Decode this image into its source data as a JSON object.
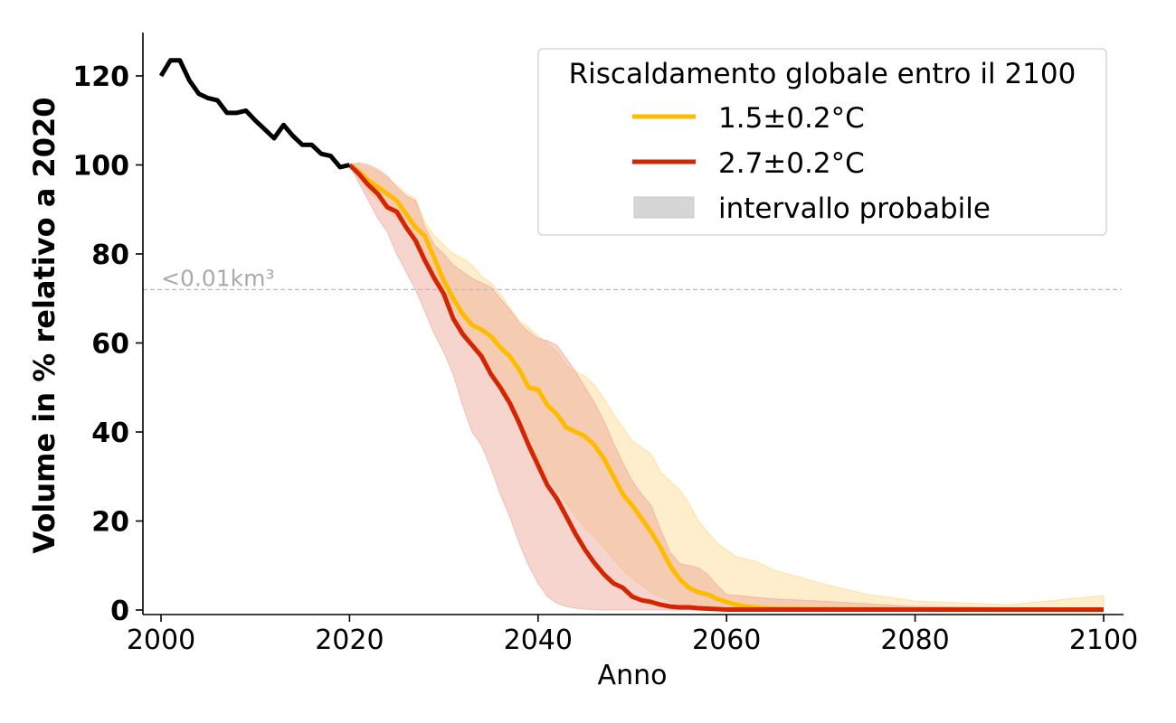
{
  "chart_data": {
    "type": "line",
    "title": "",
    "xlabel": "Anno",
    "ylabel": "Volume in % relativo a 2020",
    "xlim": [
      1998,
      2102
    ],
    "ylim": [
      -1,
      130
    ],
    "xticks": [
      2000,
      2020,
      2040,
      2060,
      2080,
      2100
    ],
    "yticks": [
      0,
      20,
      40,
      60,
      80,
      100,
      120
    ],
    "grid": false,
    "legend": {
      "title": "Riscaldamento globale entro il 2100",
      "placement": "top-right",
      "entries": [
        {
          "label": "1.5±0.2°C",
          "kind": "line",
          "color": "#ffbb00"
        },
        {
          "label": "2.7±0.2°C",
          "kind": "line",
          "color": "#d42400"
        },
        {
          "label": "intervallo probabile",
          "kind": "patch",
          "color": "#d6d6d6"
        }
      ]
    },
    "annotations": [
      {
        "text": "<0.01km³",
        "y": 72,
        "style": "dashed-horizontal-line",
        "color": "#aaaaaa"
      }
    ],
    "series": [
      {
        "name": "observed",
        "color": "#000000",
        "x": [
          2000,
          2001,
          2002,
          2003,
          2004,
          2005,
          2006,
          2007,
          2008,
          2009,
          2010,
          2011,
          2012,
          2013,
          2014,
          2015,
          2016,
          2017,
          2018,
          2019,
          2020
        ],
        "y": [
          120,
          123.5,
          123.5,
          119,
          116,
          115,
          114.5,
          111.7,
          111.7,
          112.2,
          110,
          108,
          106,
          109,
          106.5,
          104.5,
          104.5,
          102.5,
          102,
          99.5,
          100
        ]
      },
      {
        "name": "1.5±0.2°C",
        "color": "#ffbb00",
        "band_color": "#fdd37a",
        "x": [
          2020,
          2021,
          2022,
          2023,
          2024,
          2025,
          2026,
          2027,
          2028,
          2029,
          2030,
          2031,
          2032,
          2033,
          2034,
          2035,
          2036,
          2037,
          2038,
          2039,
          2040,
          2041,
          2042,
          2043,
          2044,
          2045,
          2046,
          2047,
          2048,
          2049,
          2050,
          2051,
          2052,
          2053,
          2054,
          2055,
          2056,
          2057,
          2058,
          2059,
          2060,
          2061,
          2062,
          2063,
          2064,
          2065,
          2070,
          2075,
          2080,
          2090,
          2100
        ],
        "y": [
          100,
          98.5,
          96.5,
          95,
          93.5,
          92,
          89,
          86,
          84,
          79,
          74,
          70,
          66.5,
          64,
          63,
          61.5,
          59,
          57,
          54,
          50,
          49.5,
          46,
          44,
          41,
          40,
          39,
          37,
          34,
          30,
          26,
          23.5,
          20.5,
          17.5,
          14,
          10,
          7,
          5,
          4,
          3.5,
          2.5,
          1.8,
          1.2,
          0.8,
          0.6,
          0.4,
          0.3,
          0.2,
          0.15,
          0.1,
          0.05,
          0.05
        ],
        "lower": [
          100,
          97,
          94,
          92,
          90,
          88,
          86,
          84,
          80,
          76,
          72,
          68,
          63,
          59,
          56,
          53,
          50,
          46,
          42,
          38,
          34,
          30,
          27,
          24,
          21,
          18.5,
          16.5,
          14,
          11.5,
          9,
          7,
          5.5,
          4,
          3,
          2,
          1.5,
          1,
          0.6,
          0.4,
          0.3,
          0.2,
          0.1,
          0.05,
          0,
          0,
          0,
          0,
          0,
          0,
          0,
          0
        ],
        "upper": [
          100,
          100,
          99.5,
          98.5,
          97,
          95.5,
          93.5,
          92.5,
          87,
          84,
          82,
          80,
          79,
          77.5,
          75,
          73.5,
          71,
          68,
          65,
          63.5,
          61.5,
          60,
          58,
          55,
          53.5,
          52.5,
          50.5,
          47.5,
          44,
          41,
          38,
          36.5,
          35,
          31,
          29,
          27,
          24,
          20,
          17.5,
          15,
          13.5,
          12,
          11.5,
          11,
          10,
          9,
          6,
          3.5,
          2,
          1.2,
          3.2
        ]
      },
      {
        "name": "2.7±0.2°C",
        "color": "#d42400",
        "band_color": "#eca193",
        "x": [
          2020,
          2021,
          2022,
          2023,
          2024,
          2025,
          2026,
          2027,
          2028,
          2029,
          2030,
          2031,
          2032,
          2033,
          2034,
          2035,
          2036,
          2037,
          2038,
          2039,
          2040,
          2041,
          2042,
          2043,
          2044,
          2045,
          2046,
          2047,
          2048,
          2049,
          2050,
          2051,
          2052,
          2053,
          2054,
          2055,
          2056,
          2057,
          2058,
          2059,
          2060,
          2065,
          2070,
          2080,
          2090,
          2100
        ],
        "y": [
          100,
          98,
          95.5,
          93.5,
          90.5,
          89.5,
          86,
          83,
          78.5,
          74.5,
          71,
          65.5,
          62,
          59.5,
          57,
          53,
          50,
          46.5,
          42,
          37,
          32.5,
          28,
          25,
          21,
          17,
          13.5,
          10.5,
          8,
          6,
          5,
          3,
          2.2,
          1.8,
          1.2,
          0.8,
          0.6,
          0.6,
          0.4,
          0.3,
          0.2,
          0.1,
          0.1,
          0.1,
          0.1,
          0.1,
          0.1
        ],
        "lower": [
          100,
          96,
          92,
          88,
          85,
          80,
          76,
          72,
          67,
          62,
          58,
          53,
          46,
          40,
          37,
          32,
          26,
          21,
          15,
          10,
          6,
          3,
          1.5,
          0.8,
          0.4,
          0.2,
          0.1,
          0,
          0,
          0,
          0,
          0,
          0,
          0,
          0,
          0,
          0,
          0,
          0,
          0,
          0,
          0,
          0,
          0,
          0,
          0
        ],
        "upper": [
          100,
          100.5,
          100,
          99,
          97.5,
          95,
          93,
          92,
          86,
          82,
          80,
          77.5,
          76,
          74.5,
          73.5,
          72.5,
          70,
          67.5,
          64.5,
          62.5,
          61,
          60.5,
          59.5,
          56.5,
          53.5,
          50,
          46.5,
          42.5,
          37.5,
          33,
          29,
          26,
          23.5,
          18,
          13,
          10.5,
          10,
          9.5,
          8,
          5.5,
          3.5,
          2.5,
          2,
          0.8,
          0.5,
          0.3
        ]
      }
    ]
  }
}
